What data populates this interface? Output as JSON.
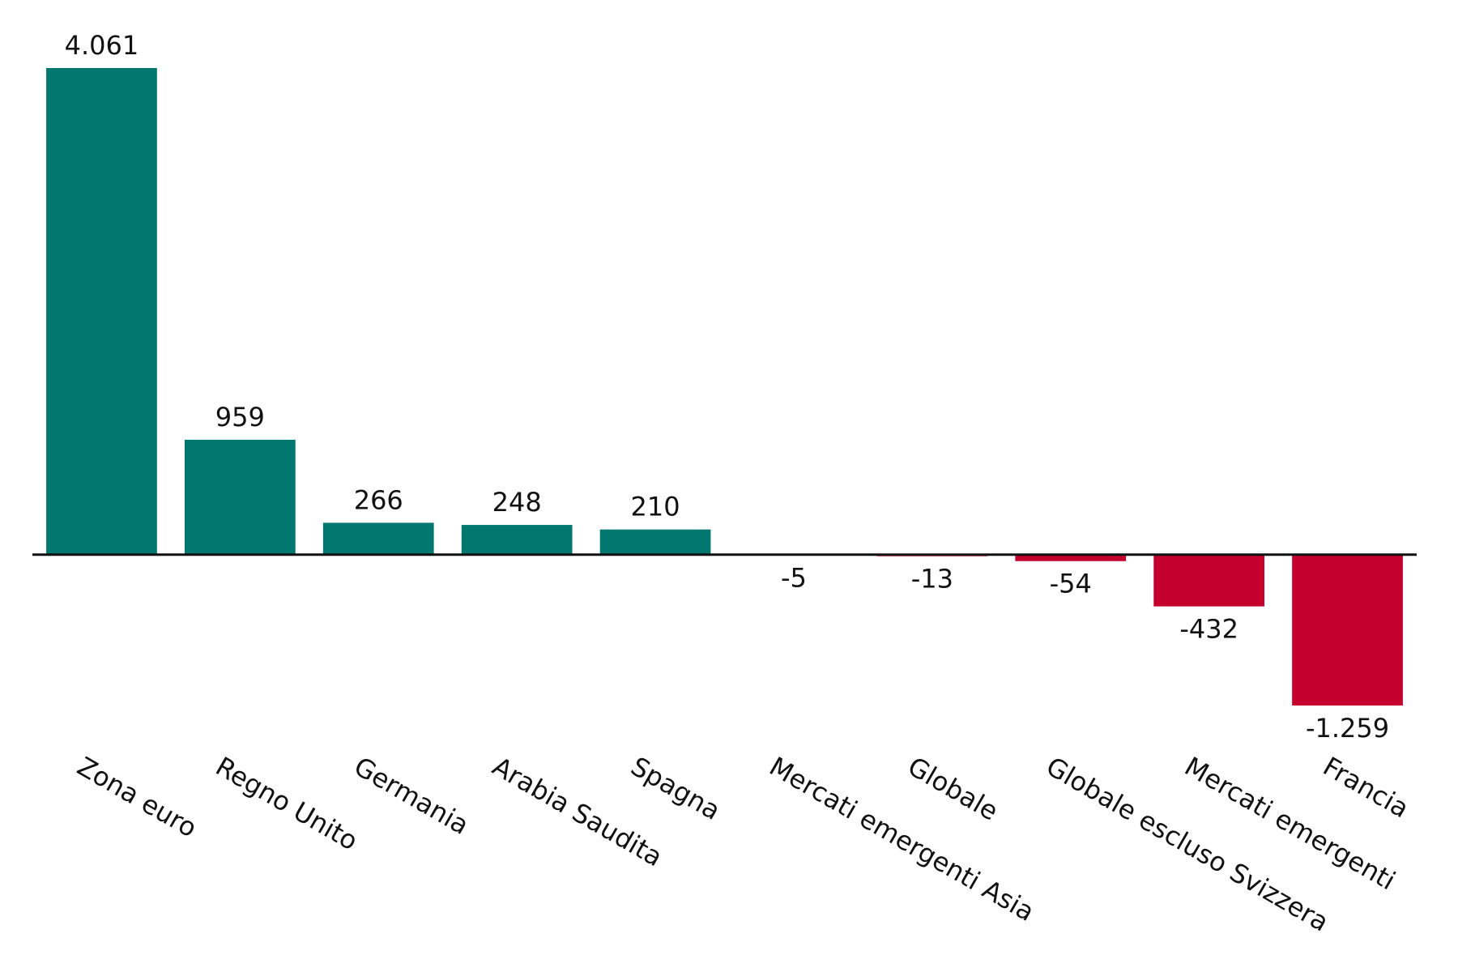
{
  "chart_data": {
    "type": "bar",
    "categories": [
      "Zona euro",
      "Regno Unito",
      "Germania",
      "Arabia Saudita",
      "Spagna",
      "Mercati emergenti Asia",
      "Globale",
      "Globale escluso Svizzera",
      "Mercati emergenti",
      "Francia"
    ],
    "values": [
      4061,
      959,
      266,
      248,
      210,
      -5,
      -13,
      -54,
      -432,
      -1259
    ],
    "value_labels": [
      "4.061",
      "959",
      "266",
      "248",
      "210",
      "-5",
      "-13",
      "-54",
      "-432",
      "-1.259"
    ],
    "color": "#00786f",
    "negative_color": "#c4002f"
  }
}
